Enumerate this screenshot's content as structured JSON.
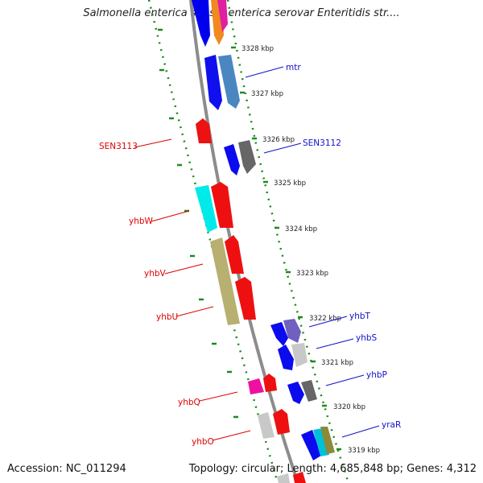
{
  "title": "Salmonella enterica subsp. enterica serovar Enteritidis str....",
  "footer": {
    "accession": "Accession: NC_011294",
    "summary": "Topology: circular; Length: 4,685,848 bp; Genes: 4,312"
  },
  "colors": {
    "backbone": "#8c8c8c",
    "tick": "#2e8b2e",
    "left_label": "#dd0000",
    "right_label": "#1010cc"
  },
  "ticks": [
    "3328 kbp",
    "3327 kbp",
    "3326 kbp",
    "3325 kbp",
    "3324 kbp",
    "3323 kbp",
    "3322 kbp",
    "3321 kbp",
    "3320 kbp",
    "3319 kbp"
  ],
  "left_genes": [
    "SEN3113",
    "yhbW",
    "yhbV",
    "yhbU",
    "yhbQ",
    "yhbO"
  ],
  "right_genes": [
    "mtr",
    "SEN3112",
    "yhbT",
    "yhbS",
    "yhbP",
    "yraR"
  ]
}
